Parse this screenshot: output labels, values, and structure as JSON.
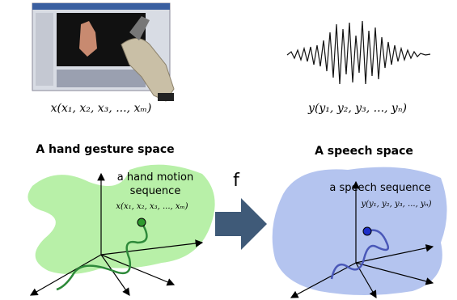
{
  "gesture": {
    "formula": "x(x₁, x₂, x₃, ..., xₘ)",
    "title": "A hand gesture space",
    "sequence_label": [
      "a hand motion",
      "sequence"
    ],
    "sequence_formula": "x(x₁, x₂, x₃, ..., xₘ)"
  },
  "mapping": {
    "label": "f"
  },
  "speech": {
    "formula": "y(y₁, y₂, y₃, ..., yₙ)",
    "title": "A speech space",
    "sequence_label": "a speech sequence",
    "sequence_formula": "y(y₁, y₂, y₃, ..., yₙ)"
  }
}
